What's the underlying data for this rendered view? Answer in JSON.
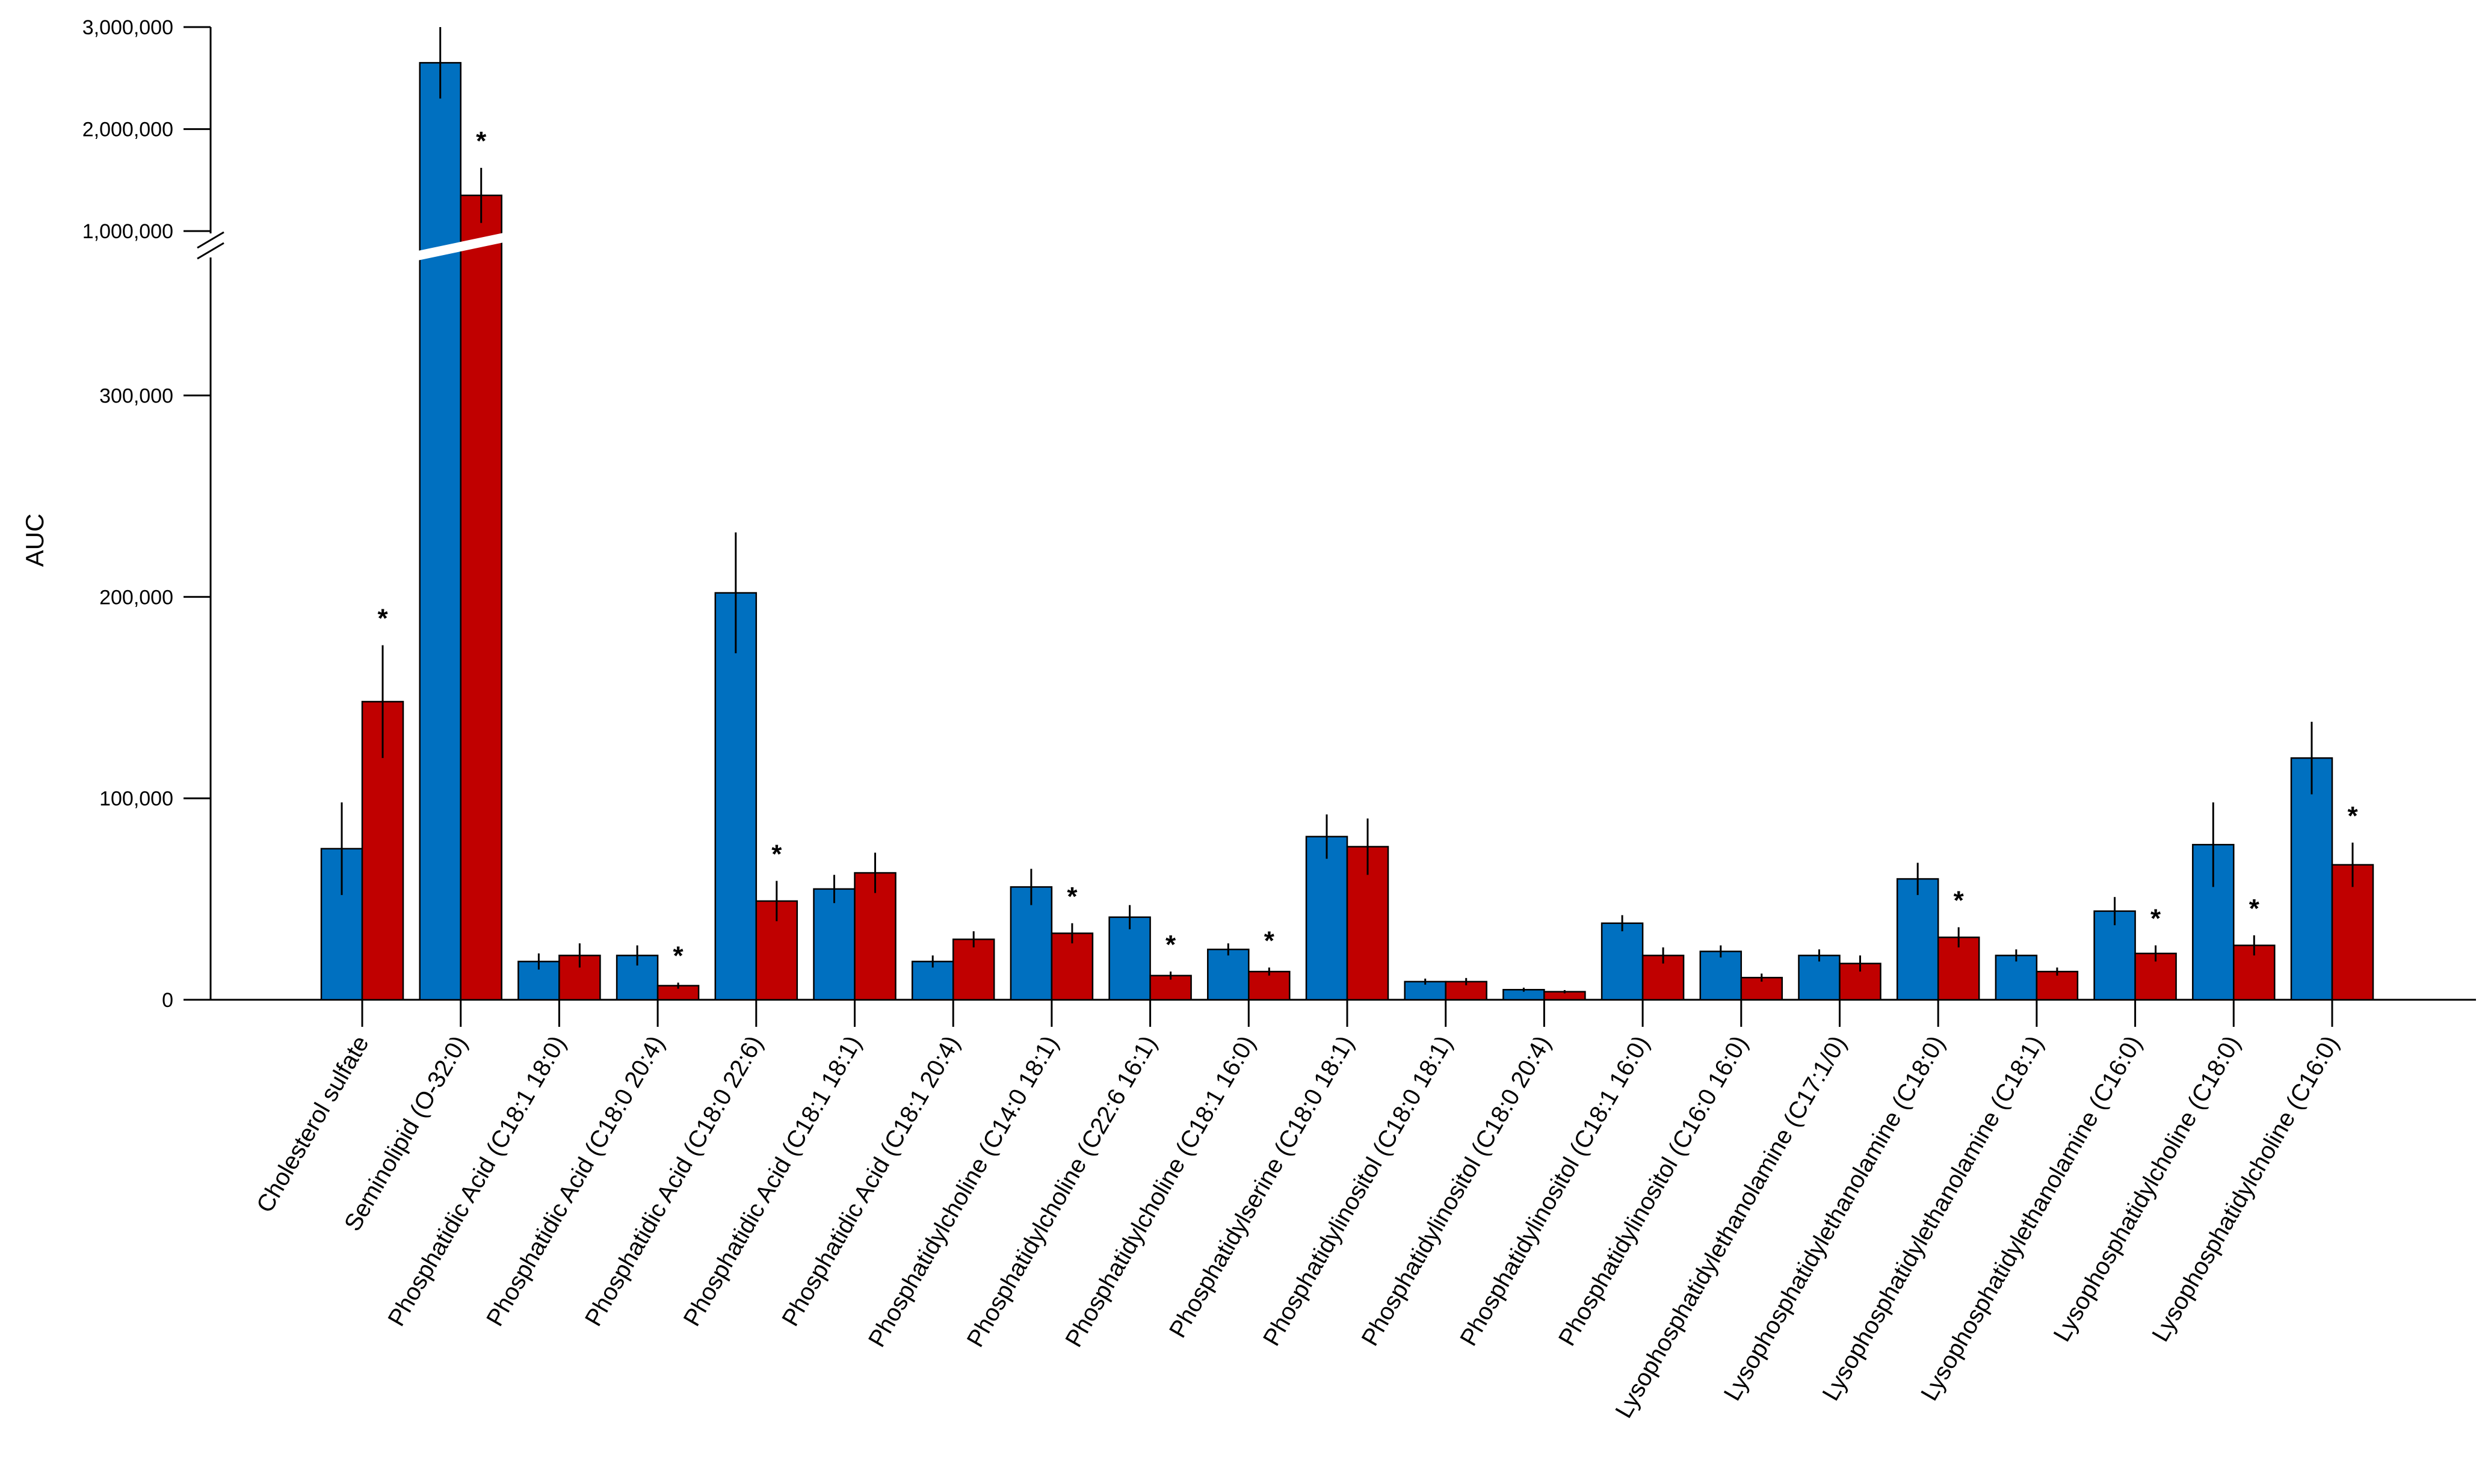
{
  "chart_data": {
    "type": "bar",
    "ylabel": "AUC",
    "ylim": [
      0,
      3000000
    ],
    "axis_break": {
      "lower_max": 350000,
      "upper_min": 700000
    },
    "yticks": [
      {
        "value": 0,
        "label": "0"
      },
      {
        "value": 100000,
        "label": "100,000"
      },
      {
        "value": 200000,
        "label": "200,000"
      },
      {
        "value": 300000,
        "label": "300,000"
      },
      {
        "value": 1000000,
        "label": "1,000,000"
      },
      {
        "value": 2000000,
        "label": "2,000,000"
      },
      {
        "value": 3000000,
        "label": "3,000,000"
      }
    ],
    "categories": [
      "Cholesterol sulfate",
      "Seminolipid (O-32:0)",
      "Phosphatidic Acid (C18:1 18:0)",
      "Phosphatidic Acid (C18:0 20:4)",
      "Phosphatidic Acid (C18:0 22:6)",
      "Phosphatidic Acid (C18:1 18:1)",
      "Phosphatidic Acid (C18:1 20:4)",
      "Phosphatidylcholine (C14:0 18:1)",
      "Phosphatidylcholine (C22:6 16:1)",
      "Phosphatidylcholine (C18:1 16:0)",
      "Phosphatidylserine (C18:0 18:1)",
      "Phosphatidylinositol (C18:0 18:1)",
      "Phosphatidylinositol (C18:0 20:4)",
      "Phosphatidylinositol (C18:1 16:0)",
      "Phosphatidylinositol (C16:0 16:0)",
      "Lysophosphatidylethanolamine (C17:1/0)",
      "Lysophosphatidylethanolamine (C18:0)",
      "Lysophosphatidylethanolamine (C18:1)",
      "Lysophosphatidylethanolamine (C16:0)",
      "Lysophosphatidylcholine (C18:0)",
      "Lysophosphatidylcholine (C16:0)"
    ],
    "series": [
      {
        "color": "#0070c0",
        "values": [
          75000,
          2650000,
          19000,
          22000,
          202000,
          55000,
          19000,
          56000,
          41000,
          25000,
          81000,
          9000,
          5000,
          38000,
          24000,
          22000,
          60000,
          22000,
          44000,
          77000,
          120000
        ],
        "errors": [
          23000,
          350000,
          4000,
          5000,
          30000,
          7000,
          3000,
          9000,
          6000,
          3000,
          11000,
          1500,
          1000,
          4000,
          3000,
          3000,
          8000,
          3000,
          7000,
          21000,
          18000
        ]
      },
      {
        "color": "#c00000",
        "values": [
          148000,
          1350000,
          22000,
          7000,
          49000,
          63000,
          30000,
          33000,
          12000,
          14000,
          76000,
          9000,
          4000,
          22000,
          11000,
          18000,
          31000,
          14000,
          23000,
          27000,
          67000
        ]
      }
    ],
    "errors2": [
      28000,
      270000,
      6000,
      1500,
      10000,
      10000,
      4000,
      5000,
      2000,
      2000,
      14000,
      1800,
      800,
      4000,
      2000,
      4000,
      5000,
      2000,
      4000,
      5000,
      11000
    ],
    "significance_marker": "*",
    "significant": [
      true,
      true,
      false,
      true,
      true,
      false,
      false,
      true,
      true,
      true,
      false,
      false,
      false,
      false,
      false,
      false,
      true,
      false,
      true,
      true,
      true
    ]
  }
}
